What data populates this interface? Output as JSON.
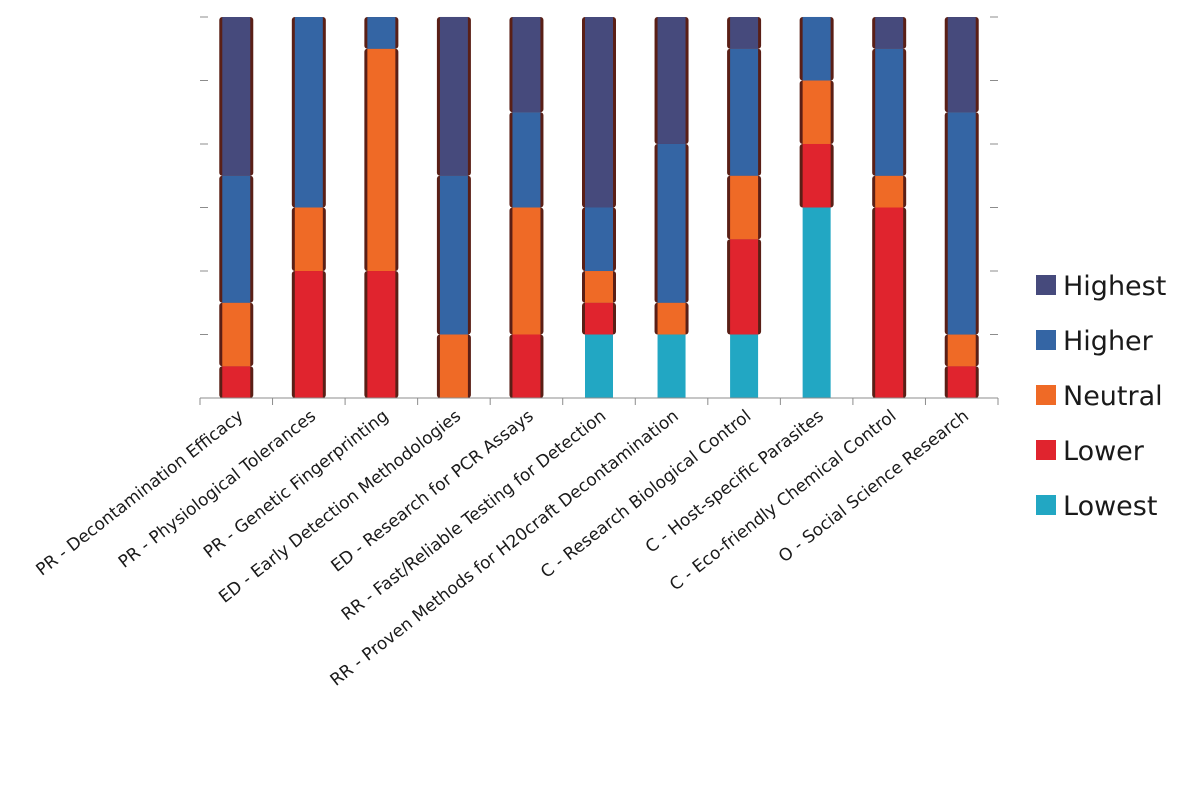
{
  "chart_data": {
    "type": "bar",
    "stacked": true,
    "normalized": true,
    "categories": [
      "PR - Decontamination Efficacy",
      "PR - Physiological Tolerances",
      "PR - Genetic Fingerprinting",
      "ED - Early Detection Methodologies",
      "ED - Research for PCR Assays",
      "RR - Fast/Reliable Testing for Detection",
      "RR - Proven Methods for H20craft Decontamination",
      "C - Research Biological Control",
      "C - Host-specific Parasites",
      "C - Eco-friendly Chemical Control",
      "O - Social Science Research"
    ],
    "series": [
      {
        "name": "Lowest",
        "color": "#22a7c3",
        "values": [
          0,
          0,
          0,
          0,
          0,
          0.1667,
          0.1667,
          0.1667,
          0.5,
          0,
          0
        ]
      },
      {
        "name": "Lower",
        "color": "#e0242e",
        "values": [
          0.0833,
          0.3333,
          0.3333,
          0,
          0.1667,
          0.0833,
          0,
          0.25,
          0.1667,
          0.5,
          0.0833
        ]
      },
      {
        "name": "Neutral",
        "color": "#ef6a26",
        "values": [
          0.1667,
          0.1667,
          0.5833,
          0.1667,
          0.3333,
          0.0833,
          0.0833,
          0.1667,
          0.1667,
          0.0833,
          0.0833
        ]
      },
      {
        "name": "Higher",
        "color": "#3465a4",
        "values": [
          0.3333,
          0.5,
          0.0833,
          0.4167,
          0.25,
          0.1667,
          0.4167,
          0.3333,
          0.1667,
          0.3333,
          0.5833
        ]
      },
      {
        "name": "Highest",
        "color": "#464a7c",
        "values": [
          0.4167,
          0,
          0,
          0.4167,
          0.25,
          0.5,
          0.3333,
          0.0833,
          0,
          0.0833,
          0.25
        ]
      }
    ],
    "legend_order": [
      "Highest",
      "Higher",
      "Neutral",
      "Lower",
      "Lowest"
    ],
    "legend_position": "right",
    "ylim": [
      0,
      1
    ],
    "y_tick_labels_visible": false,
    "grid": false,
    "bar_outline_color": "#5a1f16"
  }
}
